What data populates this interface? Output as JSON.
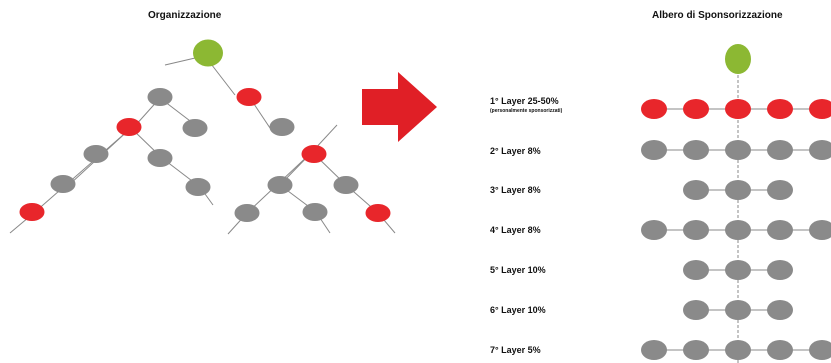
{
  "diagram": {
    "left_title": "Organizzazione",
    "right_title": "Albero di Sponsorizzazione",
    "layers": [
      {
        "label": "1° Layer 25-50%",
        "sublabel": "(personalmente sponsorizzati)"
      },
      {
        "label": "2° Layer 8%",
        "sublabel": ""
      },
      {
        "label": "3° Layer 8%",
        "sublabel": ""
      },
      {
        "label": "4° Layer 8%",
        "sublabel": ""
      },
      {
        "label": "5° Layer 10%",
        "sublabel": ""
      },
      {
        "label": "6° Layer 10%",
        "sublabel": ""
      },
      {
        "label": "7° Layer 5%",
        "sublabel": ""
      }
    ],
    "colors": {
      "root": "#8cb833",
      "sponsored": "#e8262b",
      "member": "#8a8a8a",
      "line": "#888888",
      "arrow": "#e01f26"
    },
    "arrow_icon": "right-arrow-icon"
  }
}
